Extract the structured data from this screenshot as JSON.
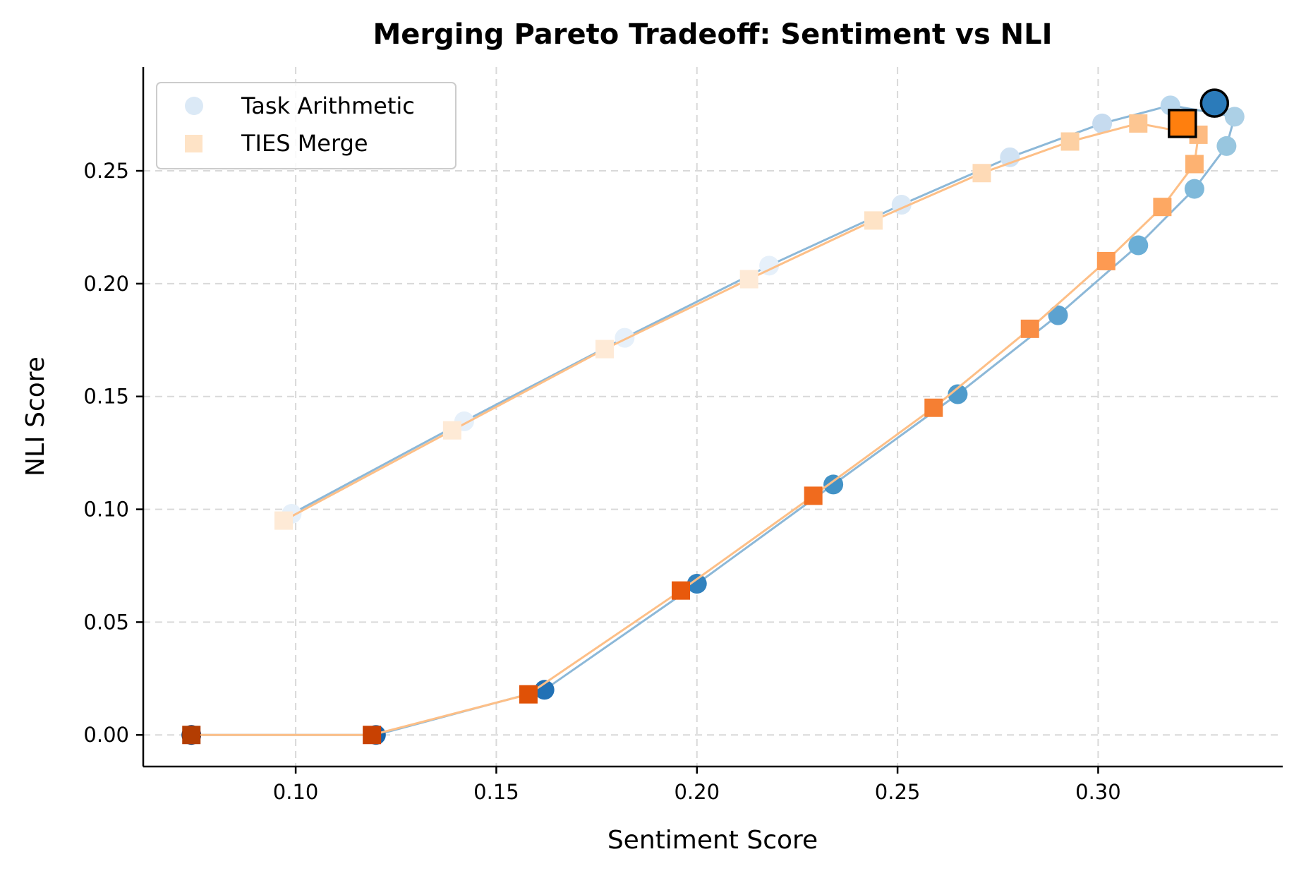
{
  "chart_data": {
    "type": "scatter",
    "title": "Merging Pareto Tradeoff: Sentiment vs NLI",
    "xlabel": "Sentiment Score",
    "ylabel": "NLI Score",
    "xlim": [
      0.062,
      0.346
    ],
    "ylim": [
      -0.014,
      0.296
    ],
    "xticks": [
      "0.10",
      "0.15",
      "0.20",
      "0.25",
      "0.30"
    ],
    "yticks": [
      "0.00",
      "0.05",
      "0.10",
      "0.15",
      "0.20",
      "0.25"
    ],
    "grid": true,
    "legend_position": "top-left",
    "series": [
      {
        "name": "Task Arithmetic",
        "marker": "circle",
        "line_color": "#8cb8d8",
        "colors": [
          "#08306b",
          "#1764ab",
          "#2171b5",
          "#3282be",
          "#4292c6",
          "#4f9bcb",
          "#5ca2d0",
          "#6aaed6",
          "#7fb9da",
          "#98c6df",
          "#acd0e6",
          "#b9d7ed",
          "#c6dbef",
          "#d0e2f3",
          "#dbe9f6",
          "#e6f0fa"
        ],
        "x": [
          0.074,
          0.12,
          0.162,
          0.2,
          0.234,
          0.265,
          0.29,
          0.31,
          0.324,
          0.332,
          0.334,
          0.318,
          0.301,
          0.278,
          0.251,
          0.218,
          0.182,
          0.142,
          0.099
        ],
        "y": [
          0.0,
          0.0,
          0.02,
          0.067,
          0.111,
          0.151,
          0.186,
          0.217,
          0.242,
          0.261,
          0.274,
          0.279,
          0.271,
          0.256,
          0.235,
          0.208,
          0.176,
          0.139,
          0.098
        ],
        "highlight": {
          "x": 0.329,
          "y": 0.28,
          "color": "#2b7bba"
        }
      },
      {
        "name": "TIES Merge",
        "marker": "square",
        "line_color": "#fdbf87",
        "colors": [
          "#b33d02",
          "#c84102",
          "#e05106",
          "#e8590c",
          "#f06b1e",
          "#f57f33",
          "#f98d44",
          "#fd9a52",
          "#fda863",
          "#fdb272",
          "#fdbb82",
          "#fdc692",
          "#fdd0a3",
          "#fedab6",
          "#fee3c6",
          "#feead6"
        ],
        "x": [
          0.074,
          0.119,
          0.158,
          0.196,
          0.229,
          0.259,
          0.283,
          0.302,
          0.316,
          0.324,
          0.325,
          0.31,
          0.293,
          0.271,
          0.244,
          0.213,
          0.177,
          0.139,
          0.097
        ],
        "y": [
          0.0,
          0.0,
          0.018,
          0.064,
          0.106,
          0.145,
          0.18,
          0.21,
          0.234,
          0.253,
          0.266,
          0.271,
          0.263,
          0.249,
          0.228,
          0.202,
          0.171,
          0.135,
          0.095
        ],
        "highlight": {
          "x": 0.321,
          "y": 0.271,
          "color": "#ff7f0e"
        }
      }
    ]
  }
}
